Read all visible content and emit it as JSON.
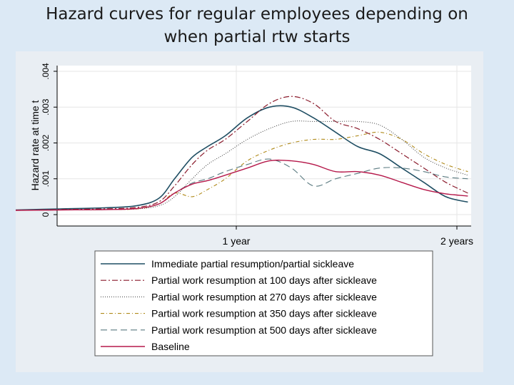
{
  "slide": {
    "title_line1": "Hazard curves for regular employees depending on",
    "title_line2": "when partial rtw starts"
  },
  "chart_data": {
    "type": "line",
    "ylabel": "Hazard rate at time t",
    "xlim": [
      0,
      2
    ],
    "ylim": [
      0,
      0.004
    ],
    "y_ticks": [
      {
        "value": 0,
        "label": "0"
      },
      {
        "value": 0.001,
        "label": ".001"
      },
      {
        "value": 0.002,
        "label": ".002"
      },
      {
        "value": 0.003,
        "label": ".003"
      },
      {
        "value": 0.004,
        "label": ".004"
      }
    ],
    "x_ticks": [
      {
        "value": 1,
        "label": "1 year"
      },
      {
        "value": 2,
        "label": "2 years"
      }
    ],
    "grid": true,
    "legend_position": "bottom",
    "series": [
      {
        "name": "Immediate partial resumption/partial sickleave",
        "color": "#1f4e63",
        "dash": "",
        "width": 1.6,
        "x": [
          0,
          0.2,
          0.4,
          0.55,
          0.65,
          0.72,
          0.8,
          0.87,
          0.95,
          1.05,
          1.15,
          1.25,
          1.35,
          1.45,
          1.55,
          1.65,
          1.75,
          1.85,
          1.95,
          2.05
        ],
        "y": [
          0.00013,
          0.00016,
          0.00019,
          0.00025,
          0.00046,
          0.001,
          0.0016,
          0.0019,
          0.0022,
          0.0027,
          0.003,
          0.003,
          0.0027,
          0.0023,
          0.0019,
          0.0017,
          0.0013,
          0.0009,
          0.0005,
          0.00035
        ]
      },
      {
        "name": "Partial work resumption at 100 days after sickleave",
        "color": "#8a1a2b",
        "dash": "8,3,2,3",
        "width": 1.2,
        "x": [
          0,
          0.2,
          0.4,
          0.55,
          0.65,
          0.72,
          0.8,
          0.87,
          0.95,
          1.05,
          1.15,
          1.25,
          1.35,
          1.45,
          1.55,
          1.65,
          1.75,
          1.85,
          1.95,
          2.05
        ],
        "y": [
          0.00012,
          0.00014,
          0.00016,
          0.0002,
          0.00036,
          0.0008,
          0.0014,
          0.0018,
          0.0021,
          0.0026,
          0.0031,
          0.0033,
          0.0031,
          0.0026,
          0.0024,
          0.0021,
          0.0017,
          0.0013,
          0.0009,
          0.0006
        ]
      },
      {
        "name": "Partial work resumption at 270 days after sickleave",
        "color": "#3a3a3a",
        "dash": "1,2",
        "width": 1.0,
        "x": [
          0,
          0.2,
          0.4,
          0.55,
          0.65,
          0.72,
          0.8,
          0.87,
          0.95,
          1.05,
          1.15,
          1.25,
          1.35,
          1.45,
          1.55,
          1.65,
          1.75,
          1.85,
          1.95,
          2.05
        ],
        "y": [
          0.00012,
          0.00013,
          0.00014,
          0.00016,
          0.00025,
          0.0005,
          0.001,
          0.0014,
          0.0017,
          0.0021,
          0.0024,
          0.0026,
          0.0026,
          0.0026,
          0.0026,
          0.0025,
          0.0021,
          0.0016,
          0.0013,
          0.0011
        ]
      },
      {
        "name": "Partial work resumption at 350 days after sickleave",
        "color": "#b08a1a",
        "dash": "5,3,1,3",
        "width": 1.1,
        "x": [
          0,
          0.2,
          0.4,
          0.55,
          0.65,
          0.72,
          0.8,
          0.87,
          0.95,
          1.05,
          1.15,
          1.25,
          1.35,
          1.45,
          1.55,
          1.65,
          1.75,
          1.85,
          1.95,
          2.05
        ],
        "y": [
          0.00012,
          0.00013,
          0.00014,
          0.00016,
          0.0003,
          0.0006,
          0.0005,
          0.0007,
          0.001,
          0.0015,
          0.0018,
          0.002,
          0.0021,
          0.0021,
          0.0022,
          0.0023,
          0.0021,
          0.0017,
          0.0014,
          0.0012
        ]
      },
      {
        "name": "Partial work resumption at 500 days after sickleave",
        "color": "#5a7a80",
        "dash": "9,5",
        "width": 1.1,
        "x": [
          0,
          0.2,
          0.4,
          0.55,
          0.65,
          0.72,
          0.8,
          0.87,
          0.95,
          1.05,
          1.15,
          1.25,
          1.35,
          1.45,
          1.55,
          1.65,
          1.75,
          1.85,
          1.95,
          2.05
        ],
        "y": [
          0.00012,
          0.00013,
          0.00014,
          0.00017,
          0.0003,
          0.0006,
          0.00088,
          0.001,
          0.0012,
          0.0014,
          0.00155,
          0.0013,
          0.0008,
          0.001,
          0.00115,
          0.0013,
          0.0013,
          0.0012,
          0.00105,
          0.001
        ]
      },
      {
        "name": "Baseline",
        "color": "#b5184a",
        "dash": "",
        "width": 1.4,
        "x": [
          0,
          0.2,
          0.4,
          0.55,
          0.65,
          0.72,
          0.8,
          0.87,
          0.95,
          1.05,
          1.15,
          1.25,
          1.35,
          1.45,
          1.55,
          1.65,
          1.75,
          1.85,
          1.95,
          2.05
        ],
        "y": [
          0.00012,
          0.00013,
          0.00014,
          0.00017,
          0.0003,
          0.0006,
          0.00085,
          0.00095,
          0.0011,
          0.0013,
          0.0015,
          0.0015,
          0.0014,
          0.0012,
          0.0012,
          0.0011,
          0.0009,
          0.0007,
          0.00058,
          0.00052
        ]
      }
    ]
  }
}
